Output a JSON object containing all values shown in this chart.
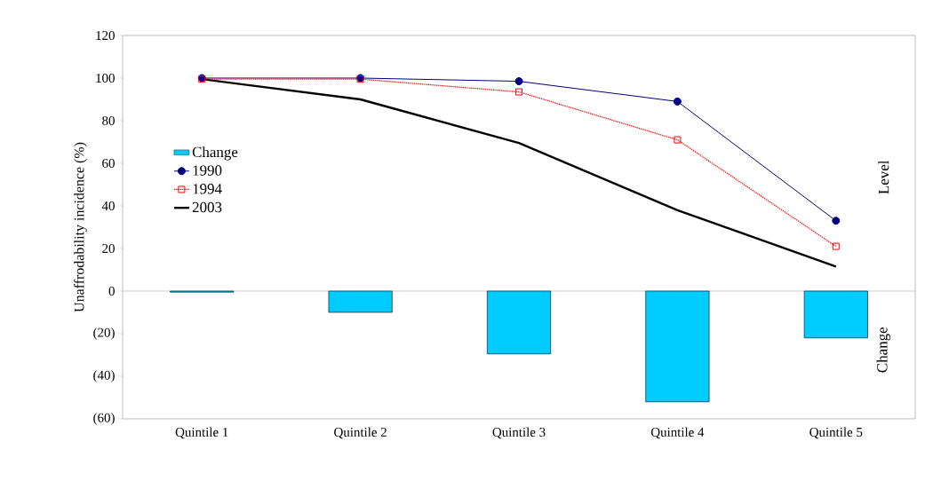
{
  "chart_data": {
    "type": "line",
    "ylabel": "Unaffrodability incidence (%)",
    "categories": [
      "Quintile 1",
      "Quintile 2",
      "Quintile 3",
      "Quintile 4",
      "Quintile 5"
    ],
    "series": [
      {
        "name": "Change",
        "type": "bar",
        "color": "#00ccff",
        "values": [
          -0.5,
          -10,
          -29.5,
          -52,
          -22
        ]
      },
      {
        "name": "1990",
        "color": "#000080",
        "marker": "circle",
        "line_style": "solid",
        "values": [
          100,
          100,
          98.5,
          89,
          33
        ]
      },
      {
        "name": "1994",
        "color": "#ff0000",
        "marker": "square",
        "line_style": "dotted",
        "values": [
          99.5,
          99.5,
          93.5,
          71,
          21
        ]
      },
      {
        "name": "2003",
        "color": "#000000",
        "marker": "none",
        "line_style": "solid",
        "values": [
          99.5,
          90,
          69.5,
          38,
          11.5
        ]
      }
    ],
    "ylim": [
      -60,
      120
    ],
    "yticks": [
      {
        "value": -60,
        "label": "(60)"
      },
      {
        "value": -40,
        "label": "(40)"
      },
      {
        "value": -20,
        "label": "(20)"
      },
      0,
      20,
      40,
      60,
      80,
      100,
      120
    ],
    "annotations": [
      "Level",
      "Change"
    ],
    "ref_lines": [
      {
        "axis": "y",
        "value": 0,
        "color": "#808080"
      }
    ],
    "legend": "left",
    "grid": false
  }
}
